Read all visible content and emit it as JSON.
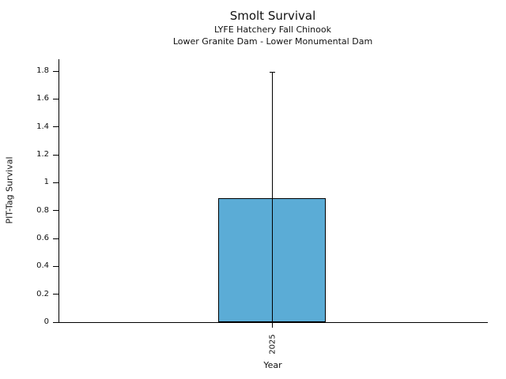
{
  "chart_data": {
    "type": "bar",
    "title": "Smolt Survival",
    "subtitle": [
      "LYFE Hatchery Fall Chinook",
      "Lower Granite Dam - Lower Monumental Dam"
    ],
    "xlabel": "Year",
    "ylabel": "PIT-Tag Survival",
    "categories": [
      "2025"
    ],
    "values": [
      0.89
    ],
    "error_upper": [
      1.79
    ],
    "error_lower": [
      0.0
    ],
    "ylim": [
      0,
      1.885
    ],
    "yticks": [
      0,
      0.2,
      0.4,
      0.6,
      0.8,
      1,
      1.2,
      1.4,
      1.6,
      1.8
    ],
    "ytick_labels": [
      "0",
      "0.2",
      "0.4",
      "0.6",
      "0.8",
      "1",
      "1.2",
      "1.4",
      "1.6",
      "1.8"
    ],
    "xtick_labels_rotation_deg": 90,
    "grid": false,
    "legend_position": "none",
    "bar_color": "#5BACD6",
    "bar_edge_color": "#000000",
    "error_color": "#000000",
    "background_color": "#FFFFFF",
    "text_color": "#111111"
  }
}
